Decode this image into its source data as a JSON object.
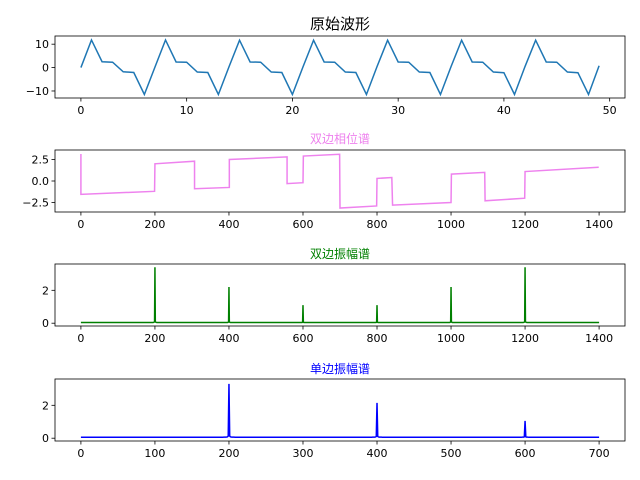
{
  "chart_data": [
    {
      "type": "line",
      "title": "原始波形",
      "title_color": "#000000",
      "title_size": "large",
      "line_color": "#1f77b4",
      "xlim": [
        -2.45,
        51.45
      ],
      "ylim": [
        -13,
        13.5
      ],
      "xticks": [
        0,
        10,
        20,
        30,
        40,
        50
      ],
      "yticks": [
        10,
        0,
        -10
      ],
      "tick_labels_x": [
        "0",
        "10",
        "20",
        "30",
        "40",
        "50"
      ],
      "tick_labels_y": [
        "10",
        "0",
        "−10"
      ],
      "series": [
        {
          "x": [
            0,
            1,
            2,
            3,
            4,
            5,
            6,
            7,
            8,
            9,
            10,
            11,
            12,
            13,
            14,
            15,
            16,
            17,
            18,
            19,
            20,
            21,
            22,
            23,
            24,
            25,
            26,
            27,
            28,
            29,
            30,
            31,
            32,
            33,
            34,
            35,
            36,
            37,
            38,
            39,
            40,
            41,
            42,
            43,
            44,
            45,
            46,
            47,
            48,
            49
          ],
          "values": [
            0,
            11.8,
            2.5,
            2.3,
            -1.8,
            -2.1,
            -11.5,
            0.2,
            11.8,
            2.4,
            2.3,
            -1.9,
            -2.1,
            -11.5,
            0.3,
            11.7,
            2.4,
            2.3,
            -1.9,
            -2.1,
            -11.5,
            0.3,
            11.7,
            2.4,
            2.3,
            -1.9,
            -2.1,
            -11.5,
            0.4,
            11.7,
            2.4,
            2.3,
            -1.9,
            -2.1,
            -11.5,
            0.4,
            11.7,
            2.4,
            2.3,
            -1.9,
            -2.2,
            -11.5,
            0.5,
            11.7,
            2.4,
            2.3,
            -1.9,
            -2.2,
            -11.5,
            0.8
          ]
        }
      ]
    },
    {
      "type": "line",
      "title": "双边相位谱",
      "title_color": "#ee82ee",
      "title_size": "small",
      "line_color": "#ee82ee",
      "xlim": [
        -70,
        1470
      ],
      "ylim": [
        -3.6,
        3.6
      ],
      "xticks": [
        0,
        200,
        400,
        600,
        800,
        1000,
        1200,
        1400
      ],
      "yticks": [
        2.5,
        0.0,
        -2.5
      ],
      "tick_labels_x": [
        "0",
        "200",
        "400",
        "600",
        "800",
        "1000",
        "1200",
        "1400"
      ],
      "tick_labels_y": [
        "2.5",
        "0.0",
        "−2.5"
      ],
      "series": [
        {
          "x": [
            0,
            0,
            199,
            200,
            307,
            307,
            401,
            401,
            557,
            557,
            600,
            601,
            699,
            700,
            799,
            800,
            840,
            842,
            1000,
            1001,
            1091,
            1092,
            1199,
            1200,
            1399
          ],
          "values": [
            3.14,
            -1.55,
            -1.2,
            2.0,
            2.3,
            -0.9,
            -0.75,
            2.5,
            2.8,
            -0.3,
            -0.2,
            2.9,
            3.1,
            -3.14,
            -2.9,
            0.3,
            0.4,
            -2.8,
            -2.5,
            0.8,
            1.0,
            -2.3,
            -2.0,
            1.1,
            1.6
          ]
        }
      ]
    },
    {
      "type": "line",
      "title": "双边振幅谱",
      "title_color": "#008000",
      "title_size": "small",
      "line_color": "#008000",
      "xlim": [
        -70,
        1470
      ],
      "ylim": [
        -0.17,
        3.6
      ],
      "xticks": [
        0,
        200,
        400,
        600,
        800,
        1000,
        1200,
        1400
      ],
      "yticks": [
        2,
        0
      ],
      "tick_labels_x": [
        "0",
        "200",
        "400",
        "600",
        "800",
        "1000",
        "1200",
        "1400"
      ],
      "tick_labels_y": [
        "2",
        "0"
      ],
      "peaks": [
        {
          "x": 200,
          "value": 3.4
        },
        {
          "x": 400,
          "value": 2.2
        },
        {
          "x": 600,
          "value": 1.1
        },
        {
          "x": 800,
          "value": 1.1
        },
        {
          "x": 1000,
          "value": 2.2
        },
        {
          "x": 1200,
          "value": 3.4
        }
      ],
      "x_end": 1400,
      "baseline": 0.04
    },
    {
      "type": "line",
      "title": "单边振幅谱",
      "title_color": "#0000ff",
      "title_size": "small",
      "line_color": "#0000ff",
      "xlim": [
        -35,
        735
      ],
      "ylim": [
        -0.17,
        3.6
      ],
      "xticks": [
        0,
        100,
        200,
        300,
        400,
        500,
        600,
        700
      ],
      "yticks": [
        2,
        0
      ],
      "tick_labels_x": [
        "0",
        "100",
        "200",
        "300",
        "400",
        "500",
        "600",
        "700"
      ],
      "tick_labels_y": [
        "2",
        "0"
      ],
      "peaks": [
        {
          "x": 200,
          "value": 3.3
        },
        {
          "x": 400,
          "value": 2.15
        },
        {
          "x": 600,
          "value": 1.05
        }
      ],
      "x_end": 700,
      "baseline": 0.06
    }
  ]
}
